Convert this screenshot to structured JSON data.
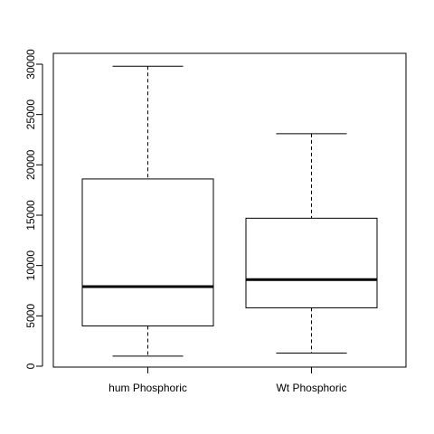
{
  "chart_data": {
    "type": "boxplot",
    "title": "",
    "xlabel": "",
    "ylabel": "",
    "ylim": [
      0,
      31000
    ],
    "yticks": [
      0,
      5000,
      10000,
      15000,
      20000,
      25000,
      30000
    ],
    "ytick_labels": [
      "0",
      "5000",
      "10000",
      "15000",
      "20000",
      "25000",
      "30000"
    ],
    "categories": [
      "hum Phosphoric",
      "Wt Phosphoric"
    ],
    "boxes": [
      {
        "min": 1000,
        "q1": 4000,
        "median": 7900,
        "q3": 18600,
        "max": 29800
      },
      {
        "min": 1300,
        "q1": 5800,
        "median": 8600,
        "q3": 14700,
        "max": 23100
      }
    ],
    "grid": false,
    "legend": "none",
    "colors": {
      "box_fill": "#ffffff",
      "stroke": "#000000"
    }
  }
}
